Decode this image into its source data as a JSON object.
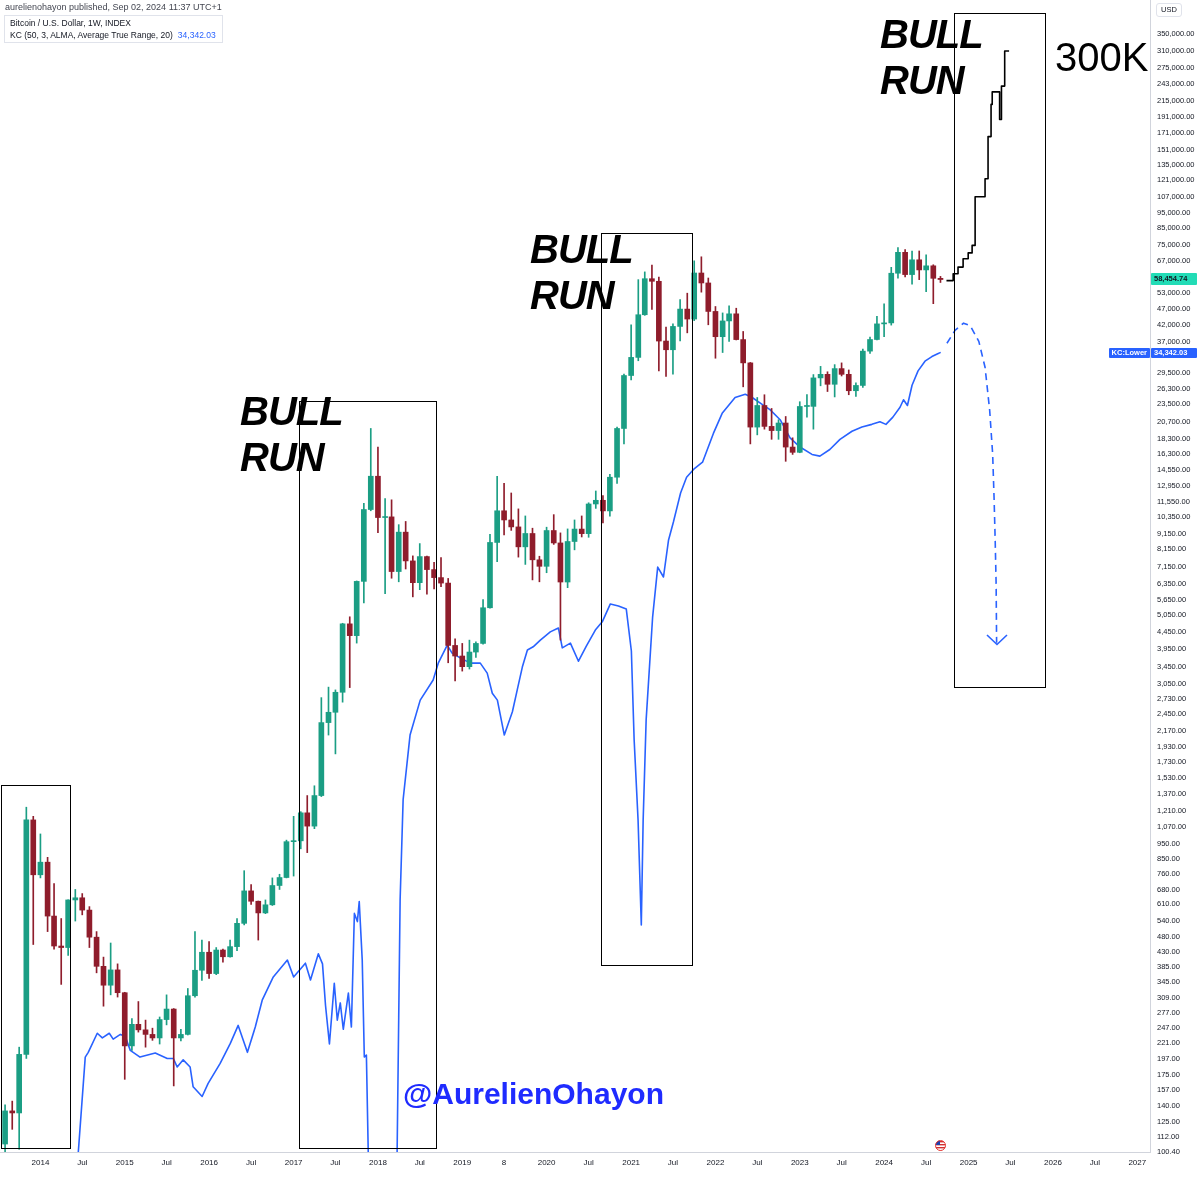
{
  "chart_data": {
    "type": "candlestick",
    "title": "Bitcoin / U.S. Dollar, 1W, INDEX",
    "ylabel": "USD",
    "log": "y",
    "legend": "top left",
    "marker": "none",
    "grid": false,
    "xlim": [
      "2013-07-10",
      "2027-02-25"
    ],
    "ylim": [
      100,
      450000
    ],
    "xticks": [
      "2014",
      {
        "value": "2014-07",
        "label": "Jul"
      },
      "2015",
      {
        "value": "2015-07",
        "label": "Jul"
      },
      "2016",
      {
        "value": "2016-07",
        "label": "Jul"
      },
      "2017",
      {
        "value": "2017-07",
        "label": "Jul"
      },
      "2018",
      {
        "value": "2018-07",
        "label": "Jul"
      },
      "2019",
      {
        "value": "2019-07",
        "label": "8"
      },
      "2020",
      {
        "value": "2020-07",
        "label": "Jul"
      },
      "2021",
      {
        "value": "2021-07",
        "label": "Jul"
      },
      "2022",
      {
        "value": "2022-07",
        "label": "Jul"
      },
      "2023",
      {
        "value": "2023-07",
        "label": "Jul"
      },
      "2024",
      {
        "value": "2024-07",
        "label": "Jul"
      },
      "2025",
      {
        "value": "2025-07",
        "label": "Jul"
      },
      "2026",
      {
        "value": "2026-07",
        "label": "Jul"
      },
      "2027"
    ],
    "yticks": [
      {
        "value": 100.4,
        "label": "100.40"
      },
      {
        "value": 112,
        "label": "112.00"
      },
      {
        "value": 125,
        "label": "125.00"
      },
      {
        "value": 140,
        "label": "140.00"
      },
      {
        "value": 157,
        "label": "157.00"
      },
      {
        "value": 175,
        "label": "175.00"
      },
      {
        "value": 197,
        "label": "197.00"
      },
      {
        "value": 221,
        "label": "221.00"
      },
      {
        "value": 247,
        "label": "247.00"
      },
      {
        "value": 277,
        "label": "277.00"
      },
      {
        "value": 309,
        "label": "309.00"
      },
      {
        "value": 345,
        "label": "345.00"
      },
      {
        "value": 385,
        "label": "385.00"
      },
      {
        "value": 430,
        "label": "430.00"
      },
      {
        "value": 480,
        "label": "480.00"
      },
      {
        "value": 540,
        "label": "540.00"
      },
      {
        "value": 610,
        "label": "610.00"
      },
      {
        "value": 680,
        "label": "680.00"
      },
      {
        "value": 760,
        "label": "760.00"
      },
      {
        "value": 850,
        "label": "850.00"
      },
      {
        "value": 950,
        "label": "950.00"
      },
      {
        "value": 1070,
        "label": "1,070.00"
      },
      {
        "value": 1210,
        "label": "1,210.00"
      },
      {
        "value": 1370,
        "label": "1,370.00"
      },
      {
        "value": 1530,
        "label": "1,530.00"
      },
      {
        "value": 1730,
        "label": "1,730.00"
      },
      {
        "value": 1930,
        "label": "1,930.00"
      },
      {
        "value": 2170,
        "label": "2,170.00"
      },
      {
        "value": 2450,
        "label": "2,450.00"
      },
      {
        "value": 2730,
        "label": "2,730.00"
      },
      {
        "value": 3050,
        "label": "3,050.00"
      },
      {
        "value": 3450,
        "label": "3,450.00"
      },
      {
        "value": 3950,
        "label": "3,950.00"
      },
      {
        "value": 4450,
        "label": "4,450.00"
      },
      {
        "value": 5050,
        "label": "5,050.00"
      },
      {
        "value": 5650,
        "label": "5,650.00"
      },
      {
        "value": 6350,
        "label": "6,350.00"
      },
      {
        "value": 7150,
        "label": "7,150.00"
      },
      {
        "value": 8150,
        "label": "8,150.00"
      },
      {
        "value": 9150,
        "label": "9,150.00"
      },
      {
        "value": 10350,
        "label": "10,350.00"
      },
      {
        "value": 11550,
        "label": "11,550.00"
      },
      {
        "value": 12950,
        "label": "12,950.00"
      },
      {
        "value": 14550,
        "label": "14,550.00"
      },
      {
        "value": 16300,
        "label": "16,300.00"
      },
      {
        "value": 18300,
        "label": "18,300.00"
      },
      {
        "value": 20700,
        "label": "20,700.00"
      },
      {
        "value": 23500,
        "label": "23,500.00"
      },
      {
        "value": 26300,
        "label": "26,300.00"
      },
      {
        "value": 29500,
        "label": "29,500.00"
      },
      {
        "value": 37000,
        "label": "37,000.00"
      },
      {
        "value": 42000,
        "label": "42,000.00"
      },
      {
        "value": 47000,
        "label": "47,000.00"
      },
      {
        "value": 53000,
        "label": "53,000.00"
      },
      {
        "value": 67000,
        "label": "67,000.00"
      },
      {
        "value": 75000,
        "label": "75,000.00"
      },
      {
        "value": 85000,
        "label": "85,000.00"
      },
      {
        "value": 95000,
        "label": "95,000.00"
      },
      {
        "value": 107000,
        "label": "107,000.00"
      },
      {
        "value": 121000,
        "label": "121,000.00"
      },
      {
        "value": 135000,
        "label": "135,000.00"
      },
      {
        "value": 151000,
        "label": "151,000.00"
      },
      {
        "value": 171000,
        "label": "171,000.00"
      },
      {
        "value": 191000,
        "label": "191,000.00"
      },
      {
        "value": 215000,
        "label": "215,000.00"
      },
      {
        "value": 243000,
        "label": "243,000.00"
      },
      {
        "value": 275000,
        "label": "275,000.00"
      },
      {
        "value": 310000,
        "label": "310,000.00"
      },
      {
        "value": 350000,
        "label": "350,000.00"
      }
    ],
    "x": [
      "2013-08",
      "2013-09",
      "2013-10",
      "2013-11",
      "2013-12",
      "2014-01",
      "2014-02",
      "2014-03",
      "2014-04",
      "2014-05",
      "2014-06",
      "2014-07",
      "2014-08",
      "2014-09",
      "2014-10",
      "2014-11",
      "2014-12",
      "2015-01",
      "2015-02",
      "2015-03",
      "2015-04",
      "2015-05",
      "2015-06",
      "2015-07",
      "2015-08",
      "2015-09",
      "2015-10",
      "2015-11",
      "2015-12",
      "2016-01",
      "2016-02",
      "2016-03",
      "2016-04",
      "2016-05",
      "2016-06",
      "2016-07",
      "2016-08",
      "2016-09",
      "2016-10",
      "2016-11",
      "2016-12",
      "2017-01",
      "2017-02",
      "2017-03",
      "2017-04",
      "2017-05",
      "2017-06",
      "2017-07",
      "2017-08",
      "2017-09",
      "2017-10",
      "2017-11",
      "2017-12",
      "2018-01",
      "2018-02",
      "2018-03",
      "2018-04",
      "2018-05",
      "2018-06",
      "2018-07",
      "2018-08",
      "2018-09",
      "2018-10",
      "2018-11",
      "2018-12",
      "2019-01",
      "2019-02",
      "2019-03",
      "2019-04",
      "2019-05",
      "2019-06",
      "2019-07",
      "2019-08",
      "2019-09",
      "2019-10",
      "2019-11",
      "2019-12",
      "2020-01",
      "2020-02",
      "2020-03",
      "2020-04",
      "2020-05",
      "2020-06",
      "2020-07",
      "2020-08",
      "2020-09",
      "2020-10",
      "2020-11",
      "2020-12",
      "2021-01",
      "2021-02",
      "2021-03",
      "2021-04",
      "2021-05",
      "2021-06",
      "2021-07",
      "2021-08",
      "2021-09",
      "2021-10",
      "2021-11",
      "2021-12",
      "2022-01",
      "2022-02",
      "2022-03",
      "2022-04",
      "2022-05",
      "2022-06",
      "2022-07",
      "2022-08",
      "2022-09",
      "2022-10",
      "2022-11",
      "2022-12",
      "2023-01",
      "2023-02",
      "2023-03",
      "2023-04",
      "2023-05",
      "2023-06",
      "2023-07",
      "2023-08",
      "2023-09",
      "2023-10",
      "2023-11",
      "2023-12",
      "2024-01",
      "2024-02",
      "2024-03",
      "2024-04",
      "2024-05",
      "2024-06",
      "2024-07",
      "2024-08",
      "2024-09"
    ],
    "ohlc": [
      [
        106,
        141,
        100,
        135
      ],
      [
        135,
        145,
        118,
        133
      ],
      [
        133,
        215,
        102,
        204
      ],
      [
        204,
        1240,
        198,
        1130
      ],
      [
        1130,
        1160,
        455,
        757
      ],
      [
        757,
        1020,
        740,
        830
      ],
      [
        830,
        860,
        500,
        560
      ],
      [
        560,
        710,
        440,
        450
      ],
      [
        450,
        550,
        340,
        445
      ],
      [
        445,
        630,
        420,
        630
      ],
      [
        630,
        680,
        540,
        640
      ],
      [
        640,
        660,
        565,
        585
      ],
      [
        585,
        600,
        445,
        480
      ],
      [
        480,
        500,
        370,
        388
      ],
      [
        388,
        415,
        290,
        338
      ],
      [
        338,
        460,
        315,
        378
      ],
      [
        378,
        395,
        310,
        320
      ],
      [
        320,
        321,
        170,
        217
      ],
      [
        217,
        265,
        210,
        254
      ],
      [
        254,
        300,
        240,
        244
      ],
      [
        244,
        262,
        215,
        236
      ],
      [
        236,
        247,
        226,
        230
      ],
      [
        230,
        268,
        220,
        263
      ],
      [
        263,
        315,
        253,
        284
      ],
      [
        284,
        285,
        162,
        230
      ],
      [
        230,
        245,
        225,
        236
      ],
      [
        236,
        330,
        235,
        313
      ],
      [
        313,
        500,
        310,
        377
      ],
      [
        377,
        470,
        350,
        430
      ],
      [
        430,
        465,
        355,
        368
      ],
      [
        368,
        445,
        365,
        437
      ],
      [
        437,
        440,
        400,
        416
      ],
      [
        416,
        470,
        415,
        448
      ],
      [
        448,
        550,
        435,
        531
      ],
      [
        531,
        780,
        525,
        673
      ],
      [
        673,
        705,
        610,
        624
      ],
      [
        624,
        625,
        470,
        573
      ],
      [
        573,
        630,
        570,
        608
      ],
      [
        608,
        740,
        605,
        700
      ],
      [
        700,
        760,
        680,
        742
      ],
      [
        742,
        975,
        740,
        964
      ],
      [
        964,
        1160,
        750,
        970
      ],
      [
        970,
        1200,
        915,
        1190
      ],
      [
        1190,
        1350,
        890,
        1080
      ],
      [
        1080,
        1450,
        1060,
        1350
      ],
      [
        1350,
        2760,
        1340,
        2300
      ],
      [
        2300,
        2980,
        2100,
        2480
      ],
      [
        2480,
        2920,
        1830,
        2870
      ],
      [
        2870,
        4750,
        2670,
        4730
      ],
      [
        4730,
        4980,
        2970,
        4340
      ],
      [
        4340,
        6470,
        4110,
        6450
      ],
      [
        6450,
        11400,
        5510,
        10900
      ],
      [
        10900,
        19700,
        10800,
        13900
      ],
      [
        13900,
        17200,
        9200,
        10280
      ],
      [
        10280,
        11800,
        5900,
        10330
      ],
      [
        10330,
        11700,
        6600,
        6930
      ],
      [
        6930,
        9760,
        6430,
        9240
      ],
      [
        9240,
        9990,
        7060,
        7490
      ],
      [
        7490,
        7770,
        5760,
        6390
      ],
      [
        6390,
        8500,
        6070,
        7730
      ],
      [
        7730,
        7760,
        5880,
        7030
      ],
      [
        7030,
        7410,
        6100,
        6630
      ],
      [
        6630,
        7680,
        6200,
        6370
      ],
      [
        6370,
        6590,
        3560,
        4040
      ],
      [
        4040,
        4240,
        3120,
        3740
      ],
      [
        3740,
        4100,
        3350,
        3460
      ],
      [
        3460,
        4200,
        3400,
        3850
      ],
      [
        3850,
        4150,
        3700,
        4100
      ],
      [
        4100,
        5650,
        4080,
        5320
      ],
      [
        5320,
        9100,
        5300,
        8570
      ],
      [
        8570,
        13900,
        7450,
        10800
      ],
      [
        10800,
        13200,
        9050,
        10100
      ],
      [
        10100,
        12300,
        9360,
        9600
      ],
      [
        9600,
        10950,
        7700,
        8300
      ],
      [
        8300,
        10400,
        7300,
        9150
      ],
      [
        9150,
        9510,
        6520,
        7550
      ],
      [
        7550,
        7750,
        6430,
        7200
      ],
      [
        7200,
        9580,
        6870,
        9350
      ],
      [
        9350,
        10500,
        8450,
        8540
      ],
      [
        8540,
        9190,
        4200,
        6420
      ],
      [
        6420,
        9460,
        6160,
        8630
      ],
      [
        8630,
        10100,
        8120,
        9450
      ],
      [
        9450,
        10400,
        8920,
        9140
      ],
      [
        9140,
        11450,
        8900,
        11350
      ],
      [
        11350,
        12480,
        10990,
        11660
      ],
      [
        11660,
        12070,
        9880,
        10790
      ],
      [
        10790,
        14100,
        10380,
        13800
      ],
      [
        13800,
        19900,
        13200,
        19700
      ],
      [
        19700,
        29300,
        17600,
        29000
      ],
      [
        29000,
        42000,
        28100,
        33100
      ],
      [
        33100,
        58400,
        32300,
        45200
      ],
      [
        45200,
        61800,
        45000,
        58800
      ],
      [
        58800,
        64900,
        47000,
        57700
      ],
      [
        57700,
        59500,
        30000,
        37300
      ],
      [
        37300,
        41300,
        28800,
        35000
      ],
      [
        35000,
        42300,
        29300,
        41500
      ],
      [
        41500,
        50500,
        37300,
        47100
      ],
      [
        47100,
        52900,
        39600,
        43800
      ],
      [
        43800,
        67000,
        43300,
        61300
      ],
      [
        61300,
        69000,
        53300,
        57000
      ],
      [
        57000,
        59100,
        42000,
        46300
      ],
      [
        46300,
        48000,
        32900,
        38500
      ],
      [
        38500,
        45800,
        34300,
        43200
      ],
      [
        43200,
        48200,
        37200,
        45500
      ],
      [
        45500,
        47400,
        37600,
        37700
      ],
      [
        37700,
        40000,
        26700,
        31800
      ],
      [
        31800,
        31900,
        17600,
        19900
      ],
      [
        19900,
        24700,
        18800,
        23300
      ],
      [
        23300,
        25200,
        19600,
        20000
      ],
      [
        20000,
        22800,
        18200,
        19400
      ],
      [
        19400,
        21000,
        18200,
        20500
      ],
      [
        20500,
        21500,
        15500,
        17200
      ],
      [
        17200,
        18400,
        16300,
        16550
      ],
      [
        16550,
        23950,
        16500,
        23130
      ],
      [
        23130,
        25250,
        21400,
        23150
      ],
      [
        23150,
        29200,
        19600,
        28500
      ],
      [
        28500,
        31000,
        26900,
        29250
      ],
      [
        29250,
        29800,
        25800,
        27200
      ],
      [
        27200,
        31400,
        24800,
        30500
      ],
      [
        30500,
        31800,
        28900,
        29250
      ],
      [
        29250,
        30200,
        25200,
        25950
      ],
      [
        25950,
        27500,
        24900,
        26970
      ],
      [
        26970,
        35200,
        26600,
        34650
      ],
      [
        34650,
        38400,
        34100,
        37720
      ],
      [
        37720,
        44700,
        37600,
        42280
      ],
      [
        42280,
        48970,
        38500,
        42580
      ],
      [
        42580,
        63900,
        41900,
        61200
      ],
      [
        61200,
        73800,
        59000,
        71300
      ],
      [
        71300,
        72700,
        59600,
        60600
      ],
      [
        60600,
        71900,
        56500,
        67500
      ],
      [
        67500,
        72000,
        58400,
        62700
      ],
      [
        62700,
        70000,
        53500,
        64600
      ],
      [
        64600,
        65100,
        49000,
        58970
      ],
      [
        58970,
        59800,
        57200,
        58454.74
      ]
    ],
    "colors": [
      "#1b9e84",
      "#8f1d2c",
      "#1b9e84",
      "#1b9e84",
      "#8f1d2c",
      "#1b9e84",
      "#8f1d2c",
      "#8f1d2c",
      "#8f1d2c",
      "#1b9e84",
      "#1b9e84",
      "#8f1d2c",
      "#8f1d2c",
      "#8f1d2c",
      "#8f1d2c",
      "#1b9e84",
      "#8f1d2c",
      "#8f1d2c",
      "#1b9e84",
      "#8f1d2c",
      "#8f1d2c",
      "#8f1d2c",
      "#1b9e84",
      "#1b9e84",
      "#8f1d2c",
      "#1b9e84",
      "#1b9e84",
      "#1b9e84",
      "#1b9e84",
      "#8f1d2c",
      "#1b9e84",
      "#8f1d2c",
      "#1b9e84",
      "#1b9e84",
      "#1b9e84",
      "#8f1d2c",
      "#8f1d2c",
      "#1b9e84",
      "#1b9e84",
      "#1b9e84",
      "#1b9e84",
      "#1b9e84",
      "#1b9e84",
      "#8f1d2c",
      "#1b9e84",
      "#1b9e84",
      "#1b9e84",
      "#1b9e84",
      "#1b9e84",
      "#8f1d2c",
      "#1b9e84",
      "#1b9e84",
      "#1b9e84",
      "#8f1d2c",
      "#1b9e84",
      "#8f1d2c",
      "#1b9e84",
      "#8f1d2c",
      "#8f1d2c",
      "#1b9e84",
      "#8f1d2c",
      "#8f1d2c",
      "#8f1d2c",
      "#8f1d2c",
      "#8f1d2c",
      "#8f1d2c",
      "#1b9e84",
      "#1b9e84",
      "#1b9e84",
      "#1b9e84",
      "#1b9e84",
      "#8f1d2c",
      "#8f1d2c",
      "#8f1d2c",
      "#1b9e84",
      "#8f1d2c",
      "#8f1d2c",
      "#1b9e84",
      "#8f1d2c",
      "#8f1d2c",
      "#1b9e84",
      "#1b9e84",
      "#8f1d2c",
      "#1b9e84",
      "#1b9e84",
      "#8f1d2c",
      "#1b9e84",
      "#1b9e84",
      "#1b9e84",
      "#1b9e84",
      "#1b9e84",
      "#1b9e84",
      "#8f1d2c",
      "#8f1d2c",
      "#8f1d2c",
      "#1b9e84",
      "#1b9e84",
      "#8f1d2c",
      "#1b9e84",
      "#8f1d2c",
      "#8f1d2c",
      "#8f1d2c",
      "#1b9e84",
      "#1b9e84",
      "#8f1d2c",
      "#8f1d2c",
      "#8f1d2c",
      "#1b9e84",
      "#8f1d2c",
      "#8f1d2c",
      "#1b9e84",
      "#8f1d2c",
      "#8f1d2c",
      "#1b9e84",
      "#1b9e84",
      "#1b9e84",
      "#1b9e84",
      "#8f1d2c",
      "#1b9e84",
      "#8f1d2c",
      "#8f1d2c",
      "#1b9e84",
      "#1b9e84",
      "#1b9e84",
      "#1b9e84",
      "#1b9e84",
      "#1b9e84",
      "#1b9e84",
      "#8f1d2c",
      "#1b9e84",
      "#8f1d2c",
      "#1b9e84",
      "#8f1d2c",
      "#8f1d2c"
    ],
    "series": [
      {
        "type": "line",
        "name": "KC (50, 3, ALMA, Average True Range, 20)",
        "color": "#2962ff",
        "x": [
          "2014-06-14",
          "2014-07-14",
          "2014-07-27",
          "2014-09-04",
          "2014-09-26",
          "2014-10-26",
          "2014-11-12",
          "2014-12-13",
          "2015-01-03",
          "2015-01-25",
          "2015-03-08",
          "2015-05-13",
          "2015-07-04",
          "2015-07-30",
          "2015-08-16",
          "2015-09-11",
          "2015-10-11",
          "2015-10-24",
          "2015-12-02",
          "2015-12-28",
          "2016-02-18",
          "2016-04-02",
          "2016-05-06",
          "2016-06-15",
          "2016-07-19",
          "2016-08-18",
          "2016-10-05",
          "2016-12-05",
          "2017-01-01",
          "2017-02-21",
          "2017-03-15",
          "2017-04-18",
          "2017-05-06",
          "2017-05-19",
          "2017-06-05",
          "2017-06-26",
          "2017-07-09",
          "2017-07-22",
          "2017-08-04",
          "2017-08-26",
          "2017-09-08",
          "2017-09-21",
          "2017-10-04",
          "2017-10-12",
          "2017-10-25",
          "2017-11-03",
          "2017-11-12",
          "2017-11-20",
          "2018-01-15",
          "2018-03-25",
          "2018-04-07",
          "2018-04-20",
          "2018-05-20",
          "2018-07-03",
          "2018-08-28",
          "2018-09-19",
          "2018-10-28",
          "2018-11-18",
          "2018-12-23",
          "2019-02-05",
          "2019-03-20",
          "2019-04-19",
          "2019-05-11",
          "2019-06-02",
          "2019-07-02",
          "2019-08-06",
          "2019-08-27",
          "2019-09-18",
          "2019-10-10",
          "2019-11-04",
          "2019-12-05",
          "2020-01-17",
          "2020-02-21",
          "2020-03-09",
          "2020-04-13",
          "2020-05-18",
          "2020-06-21",
          "2020-07-30",
          "2020-08-29",
          "2020-10-03",
          "2020-11-07",
          "2020-12-11",
          "2021-01-02",
          "2021-01-14",
          "2021-01-31",
          "2021-02-14",
          "2021-02-22",
          "2021-03-07",
          "2021-04-04",
          "2021-04-26",
          "2021-05-21",
          "2021-06-12",
          "2021-07-03",
          "2021-08-03",
          "2021-08-29",
          "2021-10-02",
          "2021-11-06",
          "2021-12-23",
          "2022-01-30",
          "2022-03-27",
          "2022-05-10",
          "2022-06-09",
          "2022-07-22",
          "2022-08-25",
          "2022-10-08",
          "2022-11-20",
          "2023-01-02",
          "2023-02-23",
          "2023-03-29",
          "2023-05-11",
          "2023-06-24",
          "2023-08-15",
          "2023-09-27",
          "2023-11-09",
          "2023-12-14",
          "2024-01-09",
          "2024-02-08",
          "2024-03-10",
          "2024-03-25",
          "2024-04-11",
          "2024-05-01",
          "2024-05-27",
          "2024-06-26",
          "2024-07-26",
          "2024-08-20",
          "2024-09-02"
        ],
        "values": [
          100,
          200,
          207,
          238,
          230,
          238,
          228,
          236,
          233,
          210,
          200,
          206,
          198,
          198,
          186,
          196,
          186,
          161,
          150,
          165,
          191,
          221,
          252,
          207,
          249,
          303,
          359,
          406,
          359,
          397,
          351,
          425,
          395,
          292,
          220,
          343,
          262,
          297,
          245,
          319,
          249,
          571,
          538,
          623,
          406,
          200,
          203,
          100,
          null,
          100,
          630,
          1310,
          2100,
          2710,
          3140,
          3550,
          4050,
          3820,
          3690,
          3550,
          3550,
          3300,
          2850,
          2710,
          2100,
          2490,
          2920,
          3450,
          3910,
          4000,
          4200,
          4460,
          4590,
          3970,
          4110,
          3600,
          4020,
          4520,
          4800,
          5470,
          5390,
          5270,
          3880,
          2030,
          1130,
          525,
          1130,
          2350,
          4970,
          7160,
          6660,
          8730,
          9950,
          12300,
          13800,
          14700,
          15400,
          19000,
          22000,
          24700,
          25300,
          24700,
          23500,
          22600,
          21000,
          18400,
          17200,
          16300,
          16100,
          16900,
          18200,
          19300,
          19900,
          20300,
          20700,
          20300,
          21400,
          23000,
          24300,
          23300,
          27000,
          30000,
          32200,
          33300,
          34000,
          34342.03
        ]
      },
      {
        "type": "line",
        "color": "#2962ff",
        "line_style": "dashed",
        "x": [
          "2024-09-29",
          "2024-11-03",
          "2024-12-10",
          "2025-01-08",
          "2025-02-14",
          "2025-03-13",
          "2025-04-02",
          "2025-04-15",
          "2025-04-21",
          "2025-04-26",
          "2025-04-30",
          "2025-05-02"
        ],
        "values": [
          36700,
          40300,
          42500,
          41700,
          37200,
          30800,
          22500,
          16300,
          11900,
          8630,
          6300,
          4120
        ]
      },
      {
        "type": "step",
        "color": "#000000",
        "x": [
          "2024-09-27",
          "2024-10-26",
          "2024-11-16",
          "2024-12-08",
          "2024-12-30",
          "2025-01-16",
          "2025-01-29",
          "2025-03-13",
          "2025-03-26",
          "2025-04-08",
          "2025-04-13",
          "2025-05-15",
          "2025-05-23",
          "2025-06-06",
          "2025-06-25"
        ],
        "values": [
          58000,
          61000,
          64000,
          68000,
          71000,
          75000,
          107000,
          122000,
          166000,
          210000,
          230000,
          188000,
          240000,
          310000,
          310000
        ]
      }
    ],
    "annotations": [
      "aurelienohayon published, Sep 02, 2024 11:37 UTC+1",
      "BULL RUN",
      "BULL RUN",
      "BULL RUN",
      "300K",
      "@AurelienOhayon",
      "58,454.74",
      "KC:Lower",
      "34,342.03",
      "34,342.03"
    ]
  }
}
